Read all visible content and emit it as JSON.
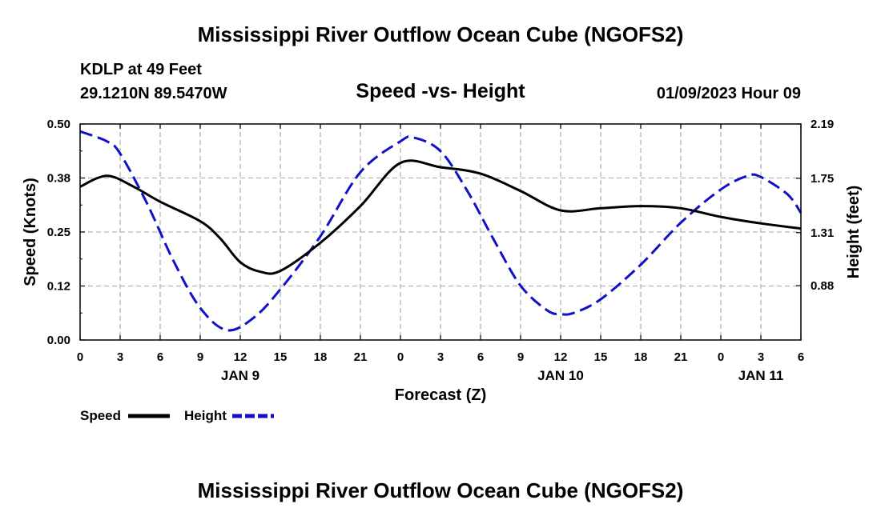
{
  "header": {
    "title": "Mississippi River Outflow Ocean Cube (NGOFS2)",
    "station": "KDLP at 49 Feet",
    "coords": "29.1210N  89.5470W",
    "subtitle": "Speed -vs- Height",
    "datetime": "01/09/2023 Hour 09"
  },
  "footer": {
    "title": "Mississippi River Outflow Ocean Cube (NGOFS2)"
  },
  "colors": {
    "speed": "#000000",
    "height": "#1010c8",
    "grid": "#b4b4b4"
  },
  "chart_data": {
    "type": "line",
    "title": "Speed -vs- Height",
    "xlabel": "Forecast (Z)",
    "ylabel": "Speed (Knots)",
    "y2label": "Height (feet)",
    "x_unit": "hours from 00Z Jan 9",
    "xlim": [
      0,
      54
    ],
    "ylim": [
      0,
      0.5
    ],
    "y2lim": [
      0.44,
      2.19
    ],
    "x_ticks": [
      0,
      3,
      6,
      9,
      12,
      15,
      18,
      21,
      24,
      27,
      30,
      33,
      36,
      39,
      42,
      45,
      48,
      51,
      54
    ],
    "x_tick_labels": [
      "0",
      "3",
      "6",
      "9",
      "12",
      "15",
      "18",
      "21",
      "0",
      "3",
      "6",
      "9",
      "12",
      "15",
      "18",
      "21",
      "0",
      "3",
      "6"
    ],
    "day_labels": [
      {
        "x": 12,
        "label": "JAN 9"
      },
      {
        "x": 36,
        "label": "JAN 10"
      },
      {
        "x": 51,
        "label": "JAN 11"
      }
    ],
    "y_ticks": [
      0.0,
      0.125,
      0.25,
      0.375,
      0.5
    ],
    "y_tick_labels": [
      "0.00",
      "0.12",
      "0.25",
      "0.38",
      "0.50"
    ],
    "y2_ticks": [
      0.88,
      1.31,
      1.75,
      2.19
    ],
    "y2_tick_labels": [
      "0.88",
      "1.31",
      "1.75",
      "2.19"
    ],
    "legend": [
      {
        "label": "Speed",
        "style": "solid"
      },
      {
        "label": "Height",
        "style": "dashed"
      }
    ],
    "series": [
      {
        "name": "Speed",
        "axis": "left",
        "style": "solid",
        "x": [
          0,
          2,
          4,
          6,
          9,
          10.5,
          12,
          13.5,
          15,
          18,
          21,
          24,
          27,
          30,
          33,
          36,
          39,
          42,
          45,
          48,
          51,
          54
        ],
        "values": [
          0.355,
          0.38,
          0.355,
          0.32,
          0.275,
          0.235,
          0.18,
          0.158,
          0.16,
          0.225,
          0.31,
          0.41,
          0.4,
          0.385,
          0.345,
          0.3,
          0.305,
          0.31,
          0.305,
          0.285,
          0.27,
          0.258
        ]
      },
      {
        "name": "Height",
        "axis": "right",
        "style": "dashed",
        "x": [
          0,
          2,
          3,
          5,
          7,
          9,
          11,
          13,
          15,
          18,
          21,
          24,
          25,
          27,
          29,
          31,
          33,
          35,
          36,
          37,
          39,
          42,
          45,
          48,
          50,
          51,
          53,
          54
        ],
        "values": [
          2.13,
          2.05,
          1.95,
          1.55,
          1.08,
          0.7,
          0.52,
          0.62,
          0.85,
          1.28,
          1.8,
          2.05,
          2.08,
          1.97,
          1.65,
          1.25,
          0.88,
          0.68,
          0.65,
          0.66,
          0.77,
          1.05,
          1.39,
          1.66,
          1.77,
          1.76,
          1.62,
          1.47
        ]
      }
    ]
  }
}
